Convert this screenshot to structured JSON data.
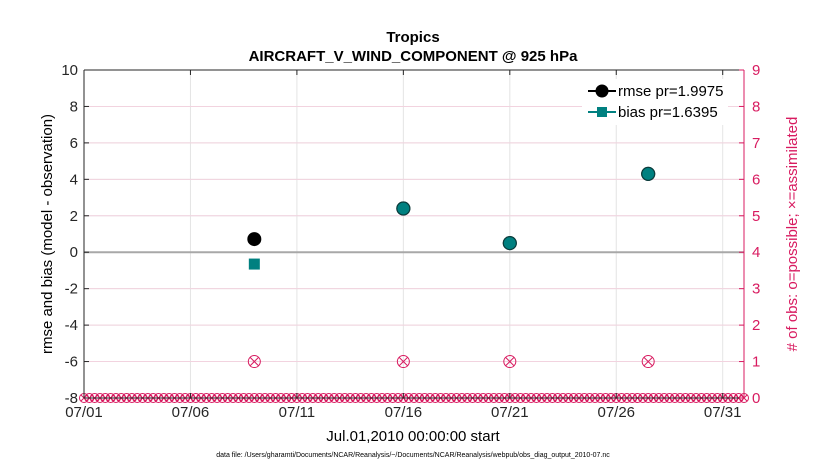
{
  "chart_data": {
    "type": "scatter",
    "title": "Tropics",
    "subtitle": "AIRCRAFT_V_WIND_COMPONENT @ 925 hPa",
    "xlabel": "Jul.01,2010 00:00:00 start",
    "ylabel": "rmse and bias (model - observation)",
    "y2label": "# of obs: o=possible; ×=assimilated",
    "xlim": [
      1,
      32
    ],
    "ylim": [
      -8,
      10
    ],
    "y2lim": [
      0,
      9
    ],
    "x_ticks": [
      {
        "value": 1,
        "label": "07/01"
      },
      {
        "value": 6,
        "label": "07/06"
      },
      {
        "value": 11,
        "label": "07/11"
      },
      {
        "value": 16,
        "label": "07/16"
      },
      {
        "value": 21,
        "label": "07/21"
      },
      {
        "value": 26,
        "label": "07/26"
      },
      {
        "value": 31,
        "label": "07/31"
      }
    ],
    "y_ticks": [
      "-8",
      "-6",
      "-4",
      "-2",
      "0",
      "2",
      "4",
      "6",
      "8",
      "10"
    ],
    "y2_ticks": [
      "0",
      "1",
      "2",
      "3",
      "4",
      "5",
      "6",
      "7",
      "8",
      "9"
    ],
    "zero_line": 0,
    "grid": true,
    "legend_position": "top-right",
    "series": [
      {
        "name": "rmse pr=1.9975",
        "color": "#000000",
        "x": [
          9,
          16,
          21,
          27.5
        ],
        "y": [
          0.72,
          2.4,
          0.5,
          4.3
        ]
      },
      {
        "name": "bias pr=1.6395",
        "color": "#008080",
        "x": [
          9,
          16,
          21,
          27.5
        ],
        "y": [
          -0.65,
          2.4,
          0.5,
          4.3
        ]
      }
    ],
    "obs_count": {
      "color": "#d81b60",
      "x": [
        9,
        16,
        21,
        27.5
      ],
      "possible": [
        1,
        1,
        1,
        1
      ],
      "assimilated": [
        1,
        1,
        1,
        1
      ],
      "zero_marker_step": 0.25
    },
    "footnote": "data file: /Users/gharamti/Documents/NCAR/Reanalysis/~/Documents/NCAR/Reanalysis/webpub/obs_diag_output_2010-07.nc"
  }
}
